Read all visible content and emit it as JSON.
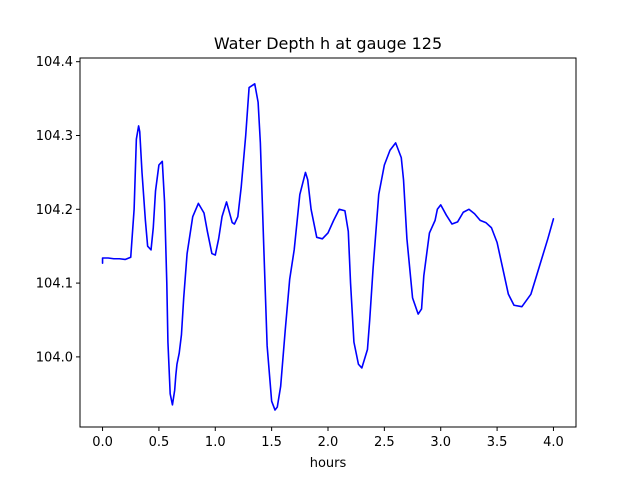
{
  "chart_data": {
    "type": "line",
    "title": "Water Depth h at gauge 125",
    "xlabel": "hours",
    "ylabel": "",
    "xlim": [
      -0.2,
      4.2
    ],
    "ylim": [
      103.905,
      104.405
    ],
    "x_ticks": [
      0.0,
      0.5,
      1.0,
      1.5,
      2.0,
      2.5,
      3.0,
      3.5,
      4.0
    ],
    "x_tick_labels": [
      "0.0",
      "0.5",
      "1.0",
      "1.5",
      "2.0",
      "2.5",
      "3.0",
      "3.5",
      "4.0"
    ],
    "y_ticks": [
      104.0,
      104.1,
      104.2,
      104.3,
      104.4
    ],
    "y_tick_labels": [
      "104.0",
      "104.1",
      "104.2",
      "104.3",
      "104.4"
    ],
    "grid": false,
    "series": [
      {
        "color": "#0000ff",
        "x": [
          0.0,
          0.0,
          0.05,
          0.1,
          0.15,
          0.2,
          0.25,
          0.28,
          0.3,
          0.32,
          0.33,
          0.35,
          0.38,
          0.4,
          0.43,
          0.45,
          0.47,
          0.5,
          0.53,
          0.55,
          0.57,
          0.58,
          0.6,
          0.62,
          0.64,
          0.65,
          0.66,
          0.68,
          0.7,
          0.72,
          0.75,
          0.8,
          0.85,
          0.9,
          0.93,
          0.97,
          1.0,
          1.03,
          1.06,
          1.1,
          1.15,
          1.17,
          1.2,
          1.23,
          1.27,
          1.3,
          1.35,
          1.38,
          1.4,
          1.43,
          1.46,
          1.5,
          1.53,
          1.55,
          1.58,
          1.62,
          1.66,
          1.7,
          1.75,
          1.8,
          1.82,
          1.85,
          1.9,
          1.95,
          2.0,
          2.05,
          2.1,
          2.15,
          2.18,
          2.2,
          2.23,
          2.27,
          2.3,
          2.35,
          2.37,
          2.4,
          2.45,
          2.5,
          2.55,
          2.6,
          2.65,
          2.67,
          2.7,
          2.75,
          2.8,
          2.83,
          2.85,
          2.9,
          2.95,
          2.97,
          3.0,
          3.05,
          3.1,
          3.15,
          3.2,
          3.25,
          3.3,
          3.35,
          3.4,
          3.45,
          3.5,
          3.55,
          3.6,
          3.65,
          3.72,
          3.8,
          3.85,
          3.9,
          3.95,
          4.0
        ],
        "y": [
          104.127,
          104.134,
          104.134,
          104.133,
          104.133,
          104.132,
          104.135,
          104.2,
          104.295,
          104.313,
          104.305,
          104.25,
          104.185,
          104.15,
          104.145,
          104.175,
          104.225,
          104.26,
          104.265,
          104.21,
          104.1,
          104.02,
          103.95,
          103.935,
          103.955,
          103.975,
          103.99,
          104.005,
          104.03,
          104.08,
          104.14,
          104.19,
          104.208,
          104.195,
          104.17,
          104.14,
          104.138,
          104.16,
          104.19,
          104.21,
          104.182,
          104.18,
          104.19,
          104.23,
          104.3,
          104.365,
          104.37,
          104.345,
          104.29,
          104.15,
          104.015,
          103.94,
          103.928,
          103.932,
          103.96,
          104.035,
          104.105,
          104.145,
          104.22,
          104.25,
          104.24,
          104.2,
          104.162,
          104.16,
          104.168,
          104.185,
          104.2,
          104.198,
          104.17,
          104.1,
          104.02,
          103.99,
          103.985,
          104.01,
          104.05,
          104.12,
          104.22,
          104.26,
          104.28,
          104.29,
          104.27,
          104.24,
          104.16,
          104.08,
          104.058,
          104.065,
          104.11,
          104.168,
          104.185,
          104.2,
          104.206,
          104.192,
          104.18,
          104.183,
          104.196,
          104.2,
          104.194,
          104.185,
          104.182,
          104.175,
          104.155,
          104.12,
          104.085,
          104.07,
          104.068,
          104.085,
          104.11,
          104.135,
          104.16,
          104.187
        ]
      }
    ]
  }
}
